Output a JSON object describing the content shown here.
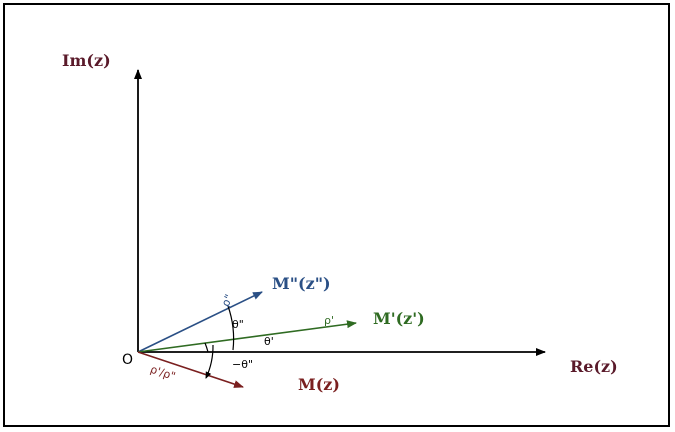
{
  "axes": {
    "imaginary_label": "Im(z)",
    "real_label": "Re(z)",
    "origin_label": "O"
  },
  "vectors": {
    "m_double_prime": {
      "label": "M\"(z\")",
      "rho_label": "ρ\"",
      "theta_label": "θ\""
    },
    "m_prime": {
      "label": "M'(z')",
      "rho_label": "ρ'",
      "theta_label": "θ'"
    },
    "m": {
      "label": "M(z)",
      "rho_label": "ρ'/ρ\"",
      "theta_label": "−θ\""
    }
  },
  "colors": {
    "axes": "#000000",
    "m_double_prime": "#2a4f85",
    "m_prime": "#2f6b22",
    "m": "#7a1f1f",
    "label_dark": "#5a1a2a",
    "border": "#000000"
  }
}
